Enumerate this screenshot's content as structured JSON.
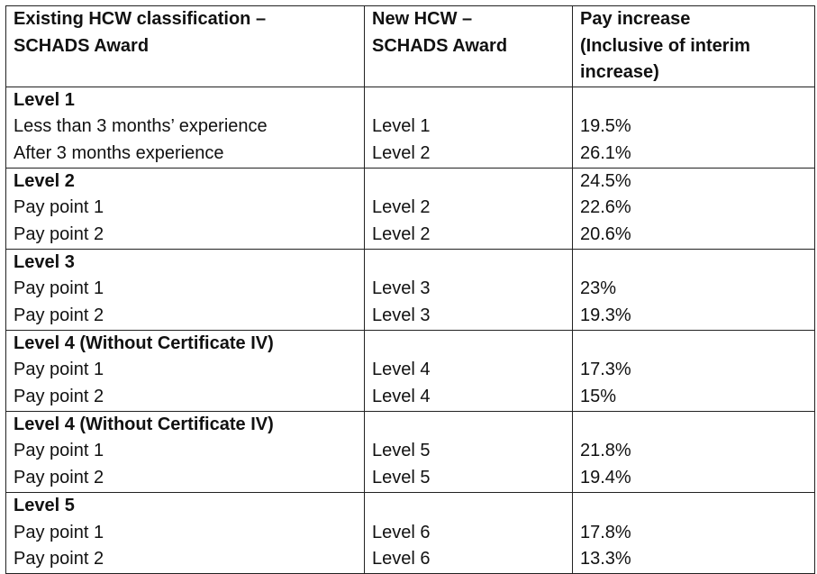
{
  "table": {
    "headers": [
      [
        "Existing HCW classification –",
        "SCHADS Award"
      ],
      [
        "New HCW –",
        "SCHADS Award"
      ],
      [
        "Pay increase",
        "(Inclusive of interim",
        "increase)"
      ]
    ],
    "groups": [
      {
        "title": "Level 1",
        "title_pay": "",
        "rows": [
          {
            "label": "Less than 3 months’ experience",
            "new_level": "Level 1",
            "pay": "19.5%"
          },
          {
            "label": "After 3 months experience",
            "new_level": "Level 2",
            "pay": "26.1%"
          }
        ]
      },
      {
        "title": "Level 2",
        "title_pay": "24.5%",
        "rows": [
          {
            "label": "Pay point 1",
            "new_level": "Level 2",
            "pay": "22.6%"
          },
          {
            "label": "Pay point 2",
            "new_level": "Level 2",
            "pay": "20.6%"
          }
        ]
      },
      {
        "title": "Level 3",
        "title_pay": "",
        "rows": [
          {
            "label": "Pay point 1",
            "new_level": "Level 3",
            "pay": "23%"
          },
          {
            "label": "Pay point 2",
            "new_level": "Level 3",
            "pay": "19.3%"
          }
        ]
      },
      {
        "title": "Level 4 (Without Certificate IV)",
        "title_pay": "",
        "rows": [
          {
            "label": "Pay point 1",
            "new_level": "Level 4",
            "pay": "17.3%"
          },
          {
            "label": "Pay point 2",
            "new_level": "Level 4",
            "pay": "15%"
          }
        ]
      },
      {
        "title": "Level 4 (Without Certificate IV)",
        "title_pay": "",
        "rows": [
          {
            "label": "Pay point 1",
            "new_level": "Level 5",
            "pay": "21.8%"
          },
          {
            "label": "Pay point 2",
            "new_level": "Level 5",
            "pay": "19.4%"
          }
        ]
      },
      {
        "title": "Level 5",
        "title_pay": "",
        "rows": [
          {
            "label": "Pay point 1",
            "new_level": "Level 6",
            "pay": "17.8%"
          },
          {
            "label": "Pay point 2",
            "new_level": "Level 6",
            "pay": "13.3%"
          }
        ]
      }
    ]
  }
}
